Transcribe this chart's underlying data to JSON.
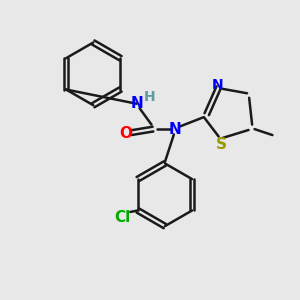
{
  "bg_color": "#e8e8e8",
  "bond_color": "#1a1a1a",
  "bond_width": 1.8,
  "atom_colors": {
    "N": "#0000ff",
    "O": "#ff0000",
    "S": "#999900",
    "Cl": "#00aa00",
    "H": "#5f9ea0",
    "C_label": "#1a1a1a"
  },
  "font_size_atoms": 11,
  "font_size_small": 9,
  "fig_width": 3.0,
  "fig_height": 3.0,
  "dpi": 100
}
